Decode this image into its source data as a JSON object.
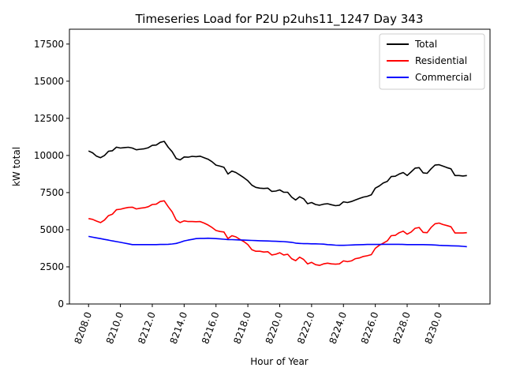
{
  "chart_data": {
    "type": "line",
    "title": "Timeseries Load for P2U p2uhs11_1247  Day 343",
    "xlabel": "Hour of Year",
    "ylabel": "kW total",
    "xlim": [
      8206.8,
      8233.2
    ],
    "ylim": [
      0,
      18500
    ],
    "xticks": [
      8208,
      8210,
      8212,
      8214,
      8216,
      8218,
      8220,
      8222,
      8224,
      8226,
      8228,
      8230
    ],
    "xtick_labels": [
      "8208.0",
      "8210.0",
      "8212.0",
      "8214.0",
      "8216.0",
      "8218.0",
      "8220.0",
      "8222.0",
      "8224.0",
      "8226.0",
      "8228.0",
      "8230.0"
    ],
    "yticks": [
      0,
      2500,
      5000,
      7500,
      10000,
      12500,
      15000,
      17500
    ],
    "ytick_labels": [
      "0",
      "2500",
      "5000",
      "7500",
      "10000",
      "12500",
      "15000",
      "17500"
    ],
    "legend": "top-right",
    "series": [
      {
        "name": "Total",
        "color": "#000000",
        "x": [
          8208.0,
          8208.25,
          8208.5,
          8208.75,
          8209.0,
          8209.25,
          8209.5,
          8209.75,
          8210.0,
          8210.25,
          8210.5,
          8210.75,
          8211.0,
          8211.25,
          8211.5,
          8211.75,
          8212.0,
          8212.25,
          8212.5,
          8212.75,
          8213.0,
          8213.25,
          8213.5,
          8213.75,
          8214.0,
          8214.25,
          8214.5,
          8214.75,
          8215.0,
          8215.25,
          8215.5,
          8215.75,
          8216.0,
          8216.25,
          8216.5,
          8216.75,
          8217.0,
          8217.25,
          8217.5,
          8217.75,
          8218.0,
          8218.25,
          8218.5,
          8218.75,
          8219.0,
          8219.25,
          8219.5,
          8219.75,
          8220.0,
          8220.25,
          8220.5,
          8220.75,
          8221.0,
          8221.25,
          8221.5,
          8221.75,
          8222.0,
          8222.25,
          8222.5,
          8222.75,
          8223.0,
          8223.25,
          8223.5,
          8223.75,
          8224.0,
          8224.25,
          8224.5,
          8224.75,
          8225.0,
          8225.25,
          8225.5,
          8225.75,
          8226.0,
          8226.25,
          8226.5,
          8226.75,
          8227.0,
          8227.25,
          8227.5,
          8227.75,
          8228.0,
          8228.25,
          8228.5,
          8228.75,
          8229.0,
          8229.25,
          8229.5,
          8229.75,
          8230.0,
          8230.25,
          8230.5,
          8230.75,
          8231.0,
          8231.25,
          8231.5,
          8231.75
        ],
        "values": [
          10300,
          10180,
          9950,
          9850,
          10000,
          10280,
          10320,
          10560,
          10500,
          10530,
          10550,
          10500,
          10380,
          10420,
          10450,
          10520,
          10680,
          10700,
          10880,
          10950,
          10550,
          10250,
          9800,
          9700,
          9900,
          9880,
          9940,
          9920,
          9950,
          9850,
          9750,
          9580,
          9350,
          9280,
          9200,
          8750,
          8950,
          8850,
          8680,
          8500,
          8300,
          8000,
          7850,
          7800,
          7780,
          7800,
          7580,
          7600,
          7680,
          7530,
          7520,
          7200,
          7000,
          7220,
          7080,
          6750,
          6830,
          6700,
          6650,
          6720,
          6750,
          6680,
          6620,
          6650,
          6880,
          6830,
          6900,
          7000,
          7100,
          7200,
          7250,
          7350,
          7800,
          7950,
          8150,
          8250,
          8580,
          8600,
          8750,
          8850,
          8650,
          8900,
          9150,
          9180,
          8830,
          8800,
          9100,
          9350,
          9380,
          9280,
          9180,
          9100,
          8650,
          8650,
          8620,
          8650
        ]
      },
      {
        "name": "Residential",
        "color": "#ff0000",
        "x": [
          8208.0,
          8208.25,
          8208.5,
          8208.75,
          8209.0,
          8209.25,
          8209.5,
          8209.75,
          8210.0,
          8210.25,
          8210.5,
          8210.75,
          8211.0,
          8211.25,
          8211.5,
          8211.75,
          8212.0,
          8212.25,
          8212.5,
          8212.75,
          8213.0,
          8213.25,
          8213.5,
          8213.75,
          8214.0,
          8214.25,
          8214.5,
          8214.75,
          8215.0,
          8215.25,
          8215.5,
          8215.75,
          8216.0,
          8216.25,
          8216.5,
          8216.75,
          8217.0,
          8217.25,
          8217.5,
          8217.75,
          8218.0,
          8218.25,
          8218.5,
          8218.75,
          8219.0,
          8219.25,
          8219.5,
          8219.75,
          8220.0,
          8220.25,
          8220.5,
          8220.75,
          8221.0,
          8221.25,
          8221.5,
          8221.75,
          8222.0,
          8222.25,
          8222.5,
          8222.75,
          8223.0,
          8223.25,
          8223.5,
          8223.75,
          8224.0,
          8224.25,
          8224.5,
          8224.75,
          8225.0,
          8225.25,
          8225.5,
          8225.75,
          8226.0,
          8226.25,
          8226.5,
          8226.75,
          8227.0,
          8227.25,
          8227.5,
          8227.75,
          8228.0,
          8228.25,
          8228.5,
          8228.75,
          8229.0,
          8229.25,
          8229.5,
          8229.75,
          8230.0,
          8230.25,
          8230.5,
          8230.75,
          8231.0,
          8231.25,
          8231.5,
          8231.75
        ],
        "values": [
          5750,
          5700,
          5580,
          5480,
          5650,
          5950,
          6050,
          6350,
          6380,
          6450,
          6500,
          6520,
          6400,
          6450,
          6480,
          6550,
          6700,
          6720,
          6900,
          6950,
          6550,
          6200,
          5650,
          5480,
          5600,
          5550,
          5550,
          5540,
          5550,
          5450,
          5320,
          5150,
          4950,
          4880,
          4850,
          4400,
          4600,
          4520,
          4350,
          4200,
          4000,
          3650,
          3550,
          3550,
          3500,
          3520,
          3300,
          3350,
          3450,
          3300,
          3350,
          3050,
          2920,
          3150,
          3000,
          2700,
          2800,
          2650,
          2600,
          2700,
          2750,
          2700,
          2680,
          2700,
          2900,
          2850,
          2900,
          3050,
          3100,
          3200,
          3250,
          3320,
          3750,
          3950,
          4100,
          4250,
          4600,
          4620,
          4800,
          4900,
          4700,
          4850,
          5100,
          5150,
          4820,
          4800,
          5150,
          5400,
          5450,
          5350,
          5280,
          5200,
          4780,
          4780,
          4780,
          4800
        ]
      },
      {
        "name": "Commercial",
        "color": "#0000ff",
        "x": [
          8208.0,
          8208.25,
          8208.5,
          8208.75,
          8209.0,
          8209.25,
          8209.5,
          8209.75,
          8210.0,
          8210.25,
          8210.5,
          8210.75,
          8211.0,
          8211.25,
          8211.5,
          8211.75,
          8212.0,
          8212.25,
          8212.5,
          8212.75,
          8213.0,
          8213.25,
          8213.5,
          8213.75,
          8214.0,
          8214.25,
          8214.5,
          8214.75,
          8215.0,
          8215.25,
          8215.5,
          8215.75,
          8216.0,
          8216.25,
          8216.5,
          8216.75,
          8217.0,
          8217.25,
          8217.5,
          8217.75,
          8218.0,
          8218.25,
          8218.5,
          8218.75,
          8219.0,
          8219.25,
          8219.5,
          8219.75,
          8220.0,
          8220.25,
          8220.5,
          8220.75,
          8221.0,
          8221.25,
          8221.5,
          8221.75,
          8222.0,
          8222.25,
          8222.5,
          8222.75,
          8223.0,
          8223.25,
          8223.5,
          8223.75,
          8224.0,
          8224.25,
          8224.5,
          8224.75,
          8225.0,
          8225.25,
          8225.5,
          8225.75,
          8226.0,
          8226.25,
          8226.5,
          8226.75,
          8227.0,
          8227.25,
          8227.5,
          8227.75,
          8228.0,
          8228.25,
          8228.5,
          8228.75,
          8229.0,
          8229.25,
          8229.5,
          8229.75,
          8230.0,
          8230.25,
          8230.5,
          8230.75,
          8231.0,
          8231.25,
          8231.5,
          8231.75
        ],
        "values": [
          4550,
          4500,
          4450,
          4400,
          4350,
          4300,
          4250,
          4200,
          4150,
          4100,
          4050,
          4000,
          4000,
          4000,
          4000,
          4000,
          4000,
          4000,
          4010,
          4010,
          4020,
          4040,
          4080,
          4150,
          4250,
          4300,
          4350,
          4400,
          4420,
          4420,
          4430,
          4420,
          4400,
          4380,
          4360,
          4340,
          4330,
          4320,
          4310,
          4300,
          4290,
          4280,
          4270,
          4260,
          4250,
          4240,
          4230,
          4220,
          4210,
          4200,
          4180,
          4150,
          4100,
          4080,
          4060,
          4060,
          4050,
          4050,
          4040,
          4030,
          4000,
          3980,
          3960,
          3950,
          3950,
          3960,
          3970,
          3980,
          3990,
          4000,
          4010,
          4010,
          4010,
          4010,
          4020,
          4020,
          4020,
          4020,
          4020,
          4010,
          4000,
          4000,
          4000,
          4000,
          4000,
          3990,
          3980,
          3970,
          3950,
          3940,
          3930,
          3920,
          3910,
          3900,
          3880,
          3860
        ]
      }
    ]
  }
}
